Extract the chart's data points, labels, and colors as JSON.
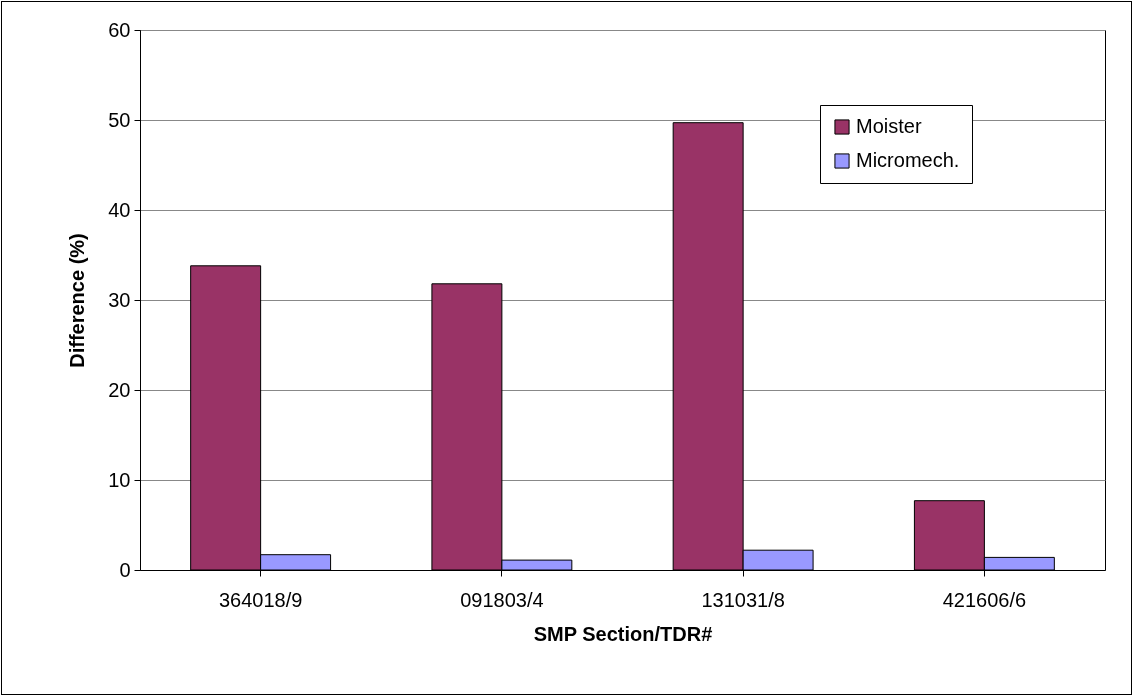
{
  "chart_data": {
    "type": "bar",
    "xlabel": "SMP Section/TDR#",
    "ylabel": "Difference (%)",
    "categories": [
      "364018/9",
      "091803/4",
      "131031/8",
      "421606/6"
    ],
    "series": [
      {
        "name": "Moister",
        "color": "#993366",
        "values": [
          33.8,
          31.8,
          49.7,
          7.7
        ]
      },
      {
        "name": "Micromech.",
        "color": "#9999ff",
        "values": [
          1.7,
          1.1,
          2.2,
          1.4
        ]
      }
    ],
    "ylim": [
      0,
      60
    ],
    "yticks": [
      0,
      10,
      20,
      30,
      40,
      50,
      60
    ],
    "grid": "y",
    "legend": "top right"
  }
}
